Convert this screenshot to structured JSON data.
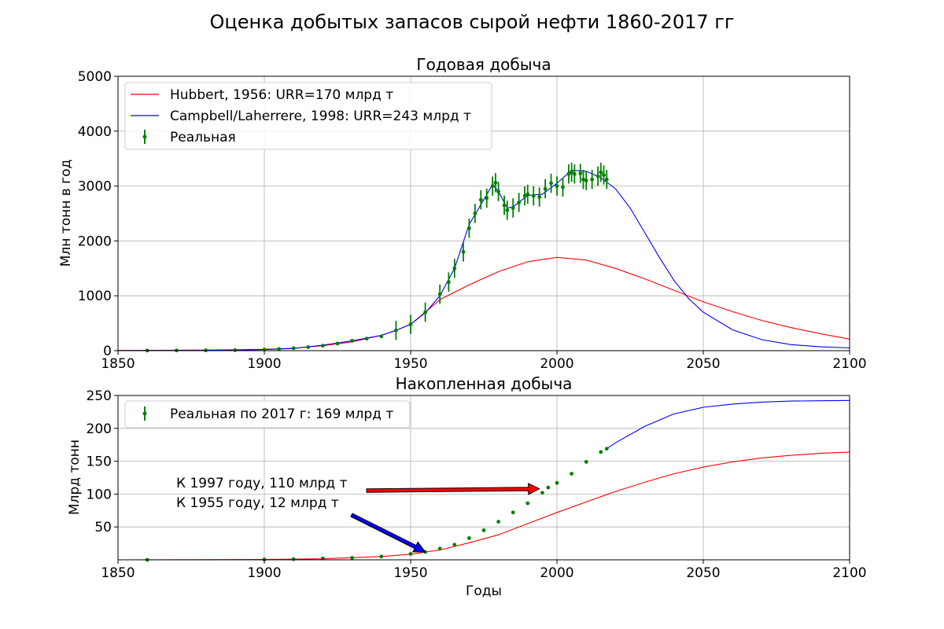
{
  "title": "Оценка добытых запасов сырой нефти 1860-2017 гг",
  "chart_data": [
    {
      "type": "line",
      "title": "Годовая добыча",
      "xlabel": "",
      "ylabel": "Млн тонн в год",
      "xlim": [
        1850,
        2100
      ],
      "ylim": [
        0,
        5000
      ],
      "x_ticks": [
        1850,
        1900,
        1950,
        2000,
        2050,
        2100
      ],
      "y_ticks": [
        0,
        1000,
        2000,
        3000,
        4000,
        5000
      ],
      "grid": true,
      "legend": "top-left",
      "series": [
        {
          "name": "Hubbert, 1956: URR=170 млрд т",
          "color": "#ff0000",
          "x": [
            1850,
            1860,
            1870,
            1880,
            1890,
            1900,
            1910,
            1920,
            1930,
            1940,
            1945,
            1950,
            1955,
            1960,
            1970,
            1980,
            1990,
            2000,
            2010,
            2020,
            2030,
            2040,
            2050,
            2060,
            2070,
            2080,
            2090,
            2100
          ],
          "y": [
            5,
            6,
            8,
            12,
            17,
            25,
            45,
            90,
            160,
            280,
            370,
            480,
            700,
            930,
            1200,
            1440,
            1620,
            1700,
            1650,
            1500,
            1310,
            1100,
            890,
            710,
            550,
            420,
            310,
            210
          ]
        },
        {
          "name": "Campbell/Laherrere, 1998: URR=243 млрд т",
          "color": "#0000ff",
          "x": [
            1850,
            1860,
            1870,
            1880,
            1890,
            1900,
            1910,
            1920,
            1930,
            1940,
            1945,
            1950,
            1955,
            1960,
            1965,
            1970,
            1975,
            1978,
            1980,
            1983,
            1985,
            1990,
            1995,
            2000,
            2005,
            2010,
            2015,
            2020,
            2025,
            2030,
            2035,
            2040,
            2045,
            2050,
            2060,
            2070,
            2080,
            2090,
            2100
          ],
          "y": [
            2,
            3,
            4,
            6,
            10,
            20,
            40,
            100,
            180,
            280,
            370,
            480,
            690,
            1000,
            1500,
            2300,
            2750,
            3030,
            2900,
            2600,
            2620,
            2830,
            2850,
            3050,
            3290,
            3270,
            3150,
            2950,
            2600,
            2150,
            1700,
            1280,
            950,
            700,
            380,
            200,
            110,
            70,
            50
          ]
        },
        {
          "name": "Реальная",
          "color": "#008000",
          "error_bars": true,
          "x": [
            1860,
            1870,
            1880,
            1890,
            1900,
            1905,
            1910,
            1915,
            1920,
            1925,
            1930,
            1935,
            1940,
            1945,
            1950,
            1955,
            1960,
            1963,
            1965,
            1968,
            1970,
            1972,
            1974,
            1976,
            1978,
            1979,
            1980,
            1982,
            1983,
            1985,
            1987,
            1989,
            1990,
            1992,
            1994,
            1996,
            1998,
            2000,
            2002,
            2004,
            2005,
            2006,
            2008,
            2009,
            2010,
            2012,
            2014,
            2015,
            2016,
            2017
          ],
          "y": [
            2,
            4,
            6,
            10,
            20,
            30,
            45,
            65,
            90,
            130,
            180,
            220,
            260,
            370,
            480,
            700,
            1030,
            1250,
            1500,
            1800,
            2230,
            2500,
            2750,
            2780,
            3000,
            3060,
            2900,
            2650,
            2560,
            2600,
            2700,
            2820,
            2850,
            2820,
            2800,
            2950,
            3050,
            3000,
            2980,
            3220,
            3250,
            3220,
            3230,
            3120,
            3100,
            3120,
            3180,
            3250,
            3200,
            3120
          ]
        }
      ]
    },
    {
      "type": "line",
      "title": "Накопленная добыча",
      "xlabel": "Годы",
      "ylabel": "Млрд тонн",
      "xlim": [
        1850,
        2100
      ],
      "ylim": [
        0,
        250
      ],
      "x_ticks": [
        1850,
        1900,
        1950,
        2000,
        2050,
        2100
      ],
      "y_ticks": [
        50,
        100,
        150,
        200,
        250
      ],
      "grid": true,
      "legend": "top-left",
      "series": [
        {
          "name": "",
          "color": "#ff0000",
          "x": [
            1850,
            1900,
            1920,
            1940,
            1950,
            1960,
            1970,
            1980,
            1990,
            2000,
            2010,
            2020,
            2030,
            2040,
            2050,
            2060,
            2070,
            2080,
            2090,
            2100
          ],
          "y": [
            0,
            0.5,
            1.5,
            5,
            8.5,
            15,
            26,
            38,
            55,
            72,
            88,
            104,
            118,
            131,
            141,
            149,
            155,
            159,
            162,
            164
          ]
        },
        {
          "name": "",
          "color": "#0000ff",
          "x": [
            2017,
            2020,
            2030,
            2040,
            2050,
            2060,
            2070,
            2080,
            2090,
            2100
          ],
          "y": [
            169,
            178,
            203,
            222,
            232,
            237,
            240,
            241.5,
            242,
            242.5
          ]
        },
        {
          "name": "Реальная по 2017 г: 169 млрд т",
          "color": "#008000",
          "error_bars": true,
          "x": [
            1860,
            1900,
            1910,
            1920,
            1930,
            1940,
            1950,
            1955,
            1960,
            1965,
            1970,
            1975,
            1980,
            1985,
            1990,
            1995,
            1997,
            2000,
            2005,
            2010,
            2015,
            2017
          ],
          "y": [
            0,
            0.5,
            1,
            2,
            3,
            5,
            9,
            12,
            17,
            23,
            33,
            45,
            58,
            72,
            86,
            102,
            110,
            117,
            131,
            149,
            164,
            169
          ]
        }
      ],
      "annotations": [
        {
          "text": "К 1997 году, 110 млрд т",
          "arrow_to": [
            1994,
            108
          ],
          "arrow_color": "#ff0000"
        },
        {
          "text": "К 1955 году, 12 млрд т",
          "arrow_to": [
            1955,
            12
          ],
          "arrow_color": "#0000ff"
        }
      ]
    }
  ]
}
